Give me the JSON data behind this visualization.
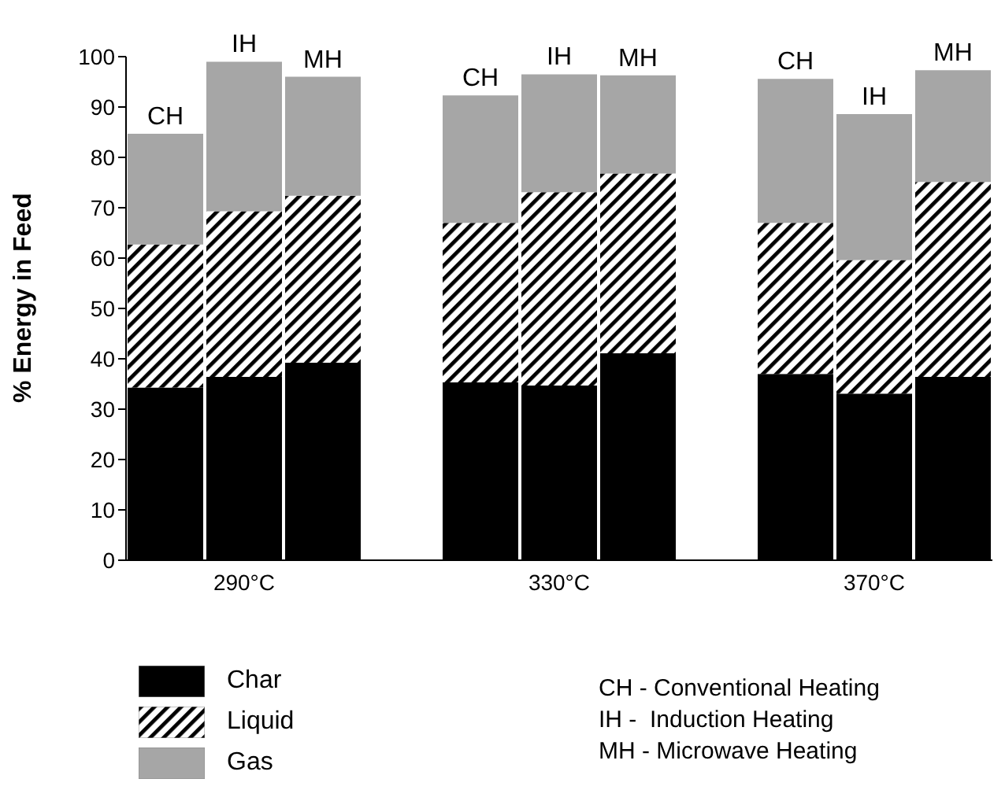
{
  "chart_data": {
    "type": "bar",
    "stacked": true,
    "ylabel": "% Energy in Feed",
    "categories": [
      "CH",
      "IH",
      "MH",
      null,
      "CH",
      "IH",
      "MH",
      null,
      "CH",
      "IH",
      "MH"
    ],
    "series": [
      {
        "name": "Char",
        "color": "#000000",
        "values": [
          34.3,
          36.4,
          39.2,
          null,
          35.3,
          34.7,
          41.1,
          null,
          37.0,
          33.1,
          36.4
        ]
      },
      {
        "name": "Liquid",
        "color": "#000000",
        "values": [
          28.4,
          32.9,
          33.2,
          null,
          31.7,
          38.4,
          35.7,
          null,
          30.0,
          26.5,
          38.7
        ]
      },
      {
        "name": "Gas",
        "color": "#a6a6a6",
        "values": [
          22.0,
          29.7,
          23.6,
          null,
          25.3,
          23.4,
          19.5,
          null,
          28.6,
          29.0,
          22.2
        ]
      }
    ],
    "ylim": [
      0,
      100
    ],
    "yticks": [
      0,
      10,
      20,
      30,
      40,
      50,
      60,
      70,
      80,
      90,
      100
    ],
    "legend": "bottom left",
    "annotations": [
      "290°C",
      "330°C",
      "370°C",
      "CH - Conventional Heating",
      "IH -  Induction Heating",
      "MH - Microwave Heating"
    ]
  }
}
